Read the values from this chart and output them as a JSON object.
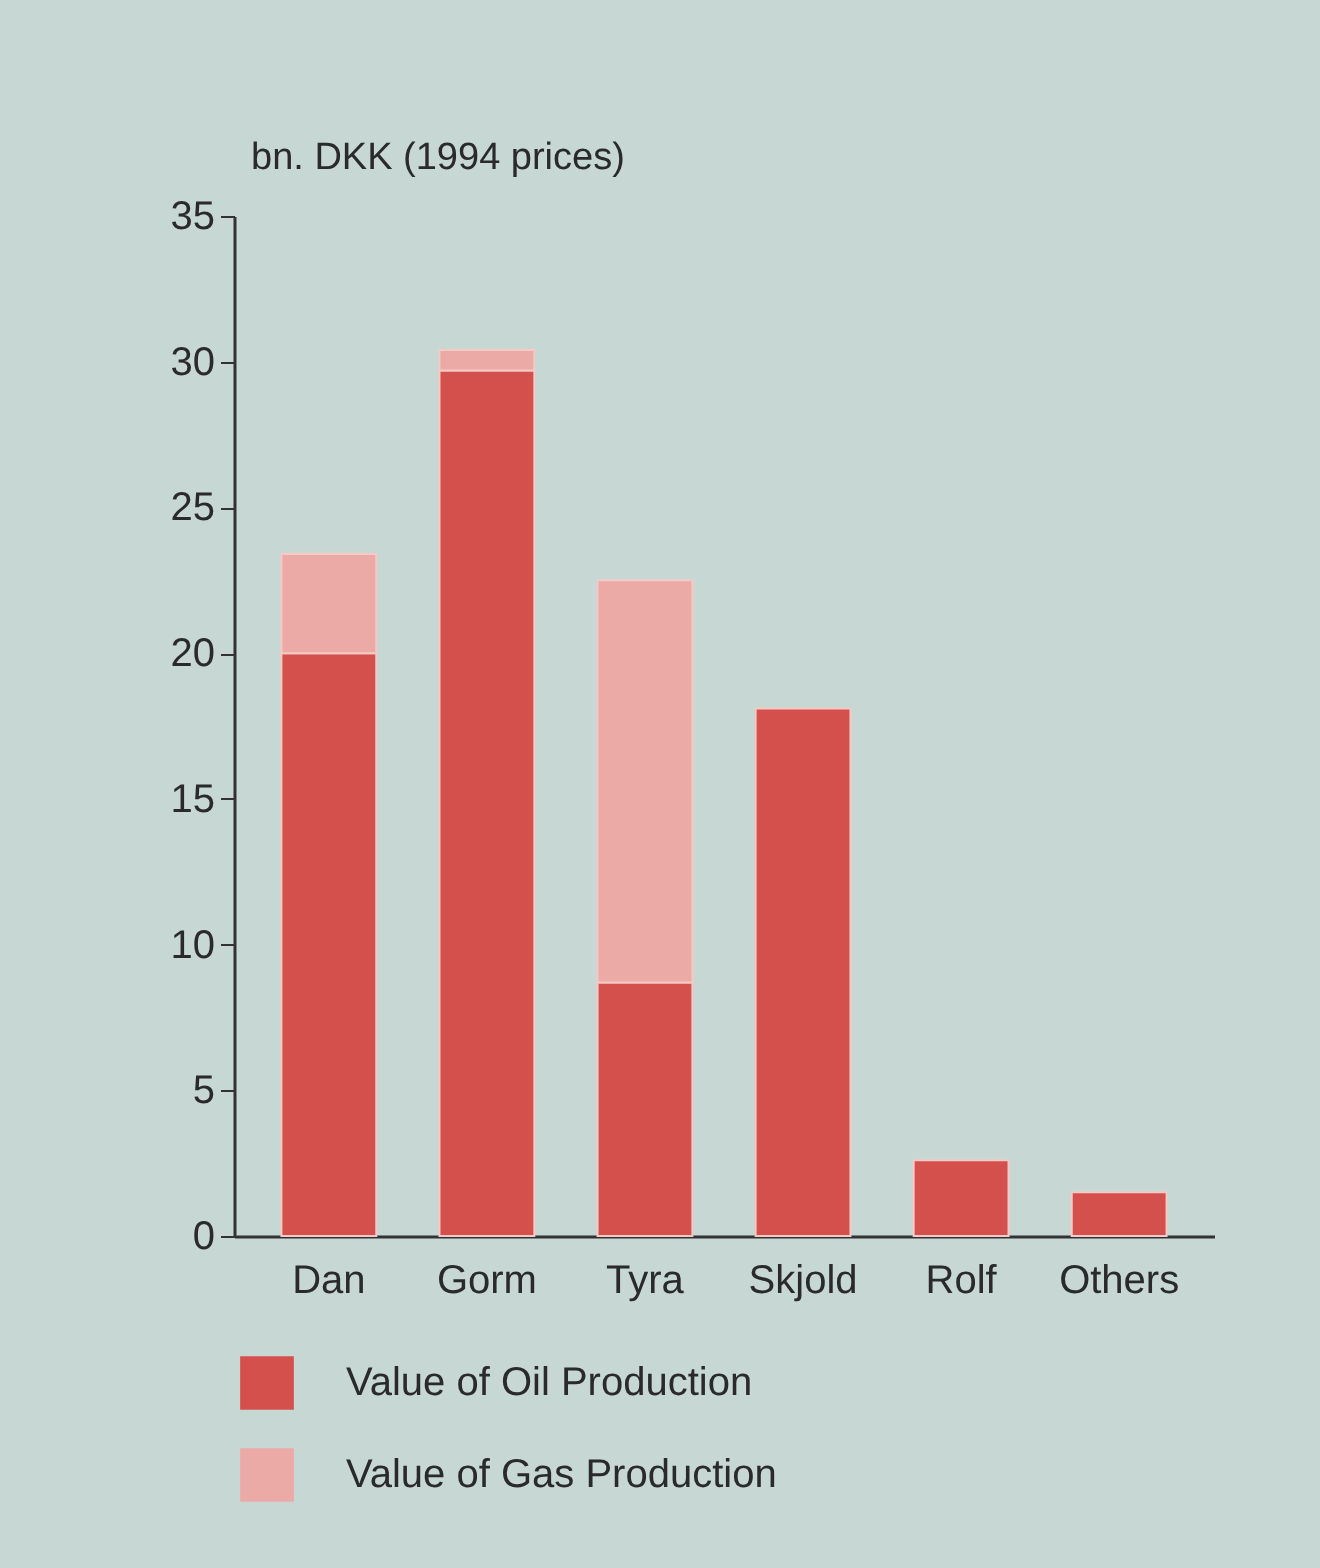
{
  "chart_data": {
    "type": "bar",
    "stacked": true,
    "ylabel": "bn. DKK (1994 prices)",
    "categories": [
      "Dan",
      "Gorm",
      "Tyra",
      "Skjold",
      "Rolf",
      "Others"
    ],
    "series": [
      {
        "name": "Value of Oil Production",
        "color": "#d4504c",
        "values": [
          20.0,
          29.7,
          8.7,
          18.1,
          2.6,
          1.5
        ]
      },
      {
        "name": "Value of Gas Production",
        "color": "#ecaaa7",
        "values": [
          3.4,
          0.7,
          13.8,
          null,
          null,
          null
        ]
      }
    ],
    "ylim": [
      0,
      35
    ],
    "yticks": [
      0,
      5,
      10,
      15,
      20,
      25,
      30,
      35
    ],
    "grid": false,
    "legend": "bottom left"
  }
}
